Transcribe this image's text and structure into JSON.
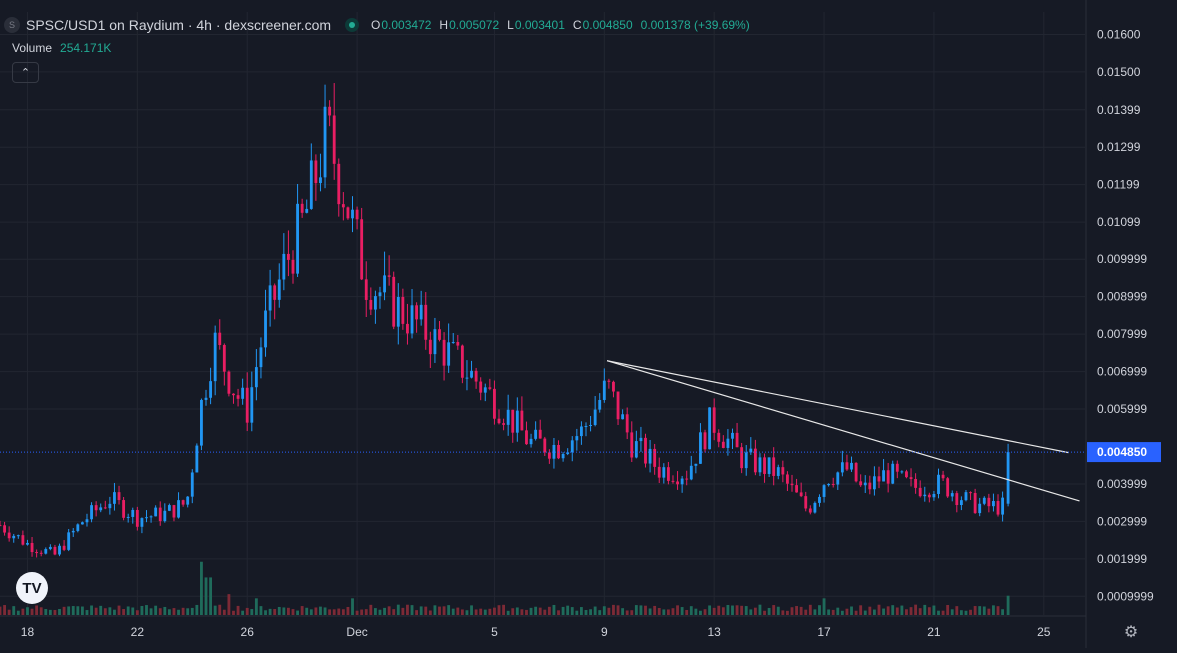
{
  "header": {
    "symbol_badge": "S",
    "title": "SPSC/USD1 on Raydium · 4h · dexscreener.com",
    "ohlc": {
      "o_label": "O",
      "o_value": "0.003472",
      "h_label": "H",
      "h_value": "0.005072",
      "l_label": "L",
      "l_value": "0.003401",
      "c_label": "C",
      "c_value": "0.004850",
      "change": "0.001378 (+39.69%)"
    },
    "volume_label": "Volume",
    "volume_value": "254.171K",
    "collapse_icon": "chevron-up-icon"
  },
  "footer": {
    "logo_text": "TV",
    "settings_icon": "gear-icon"
  },
  "colors": {
    "background": "#161a25",
    "up": "#22ab94",
    "down": "#f23645",
    "up_candle": "#2196f3",
    "down_candle": "#e91e63",
    "vol_up": "#1f6b5b",
    "vol_down": "#7d2a36",
    "grid": "#222631",
    "text": "#d1d4dc",
    "last_price_tag": "#2962ff"
  },
  "chart_data": {
    "type": "candlestick",
    "interval": "4h",
    "y_ticks": [
      "0.01600",
      "0.01500",
      "0.01399",
      "0.01299",
      "0.01199",
      "0.01099",
      "0.009999",
      "0.008999",
      "0.007999",
      "0.006999",
      "0.005999",
      "0.004850",
      "0.003999",
      "0.002999",
      "0.001999",
      "0.0009999"
    ],
    "y_tick_values": [
      0.016,
      0.015,
      0.01399,
      0.01299,
      0.01199,
      0.01099,
      0.009999,
      0.008999,
      0.007999,
      0.006999,
      0.005999,
      0.003999,
      0.002999,
      0.001999,
      0.0009999
    ],
    "ylim": [
      0.0005,
      0.0166
    ],
    "x_ticks": [
      "18",
      "22",
      "26",
      "Dec",
      "5",
      "9",
      "13",
      "17",
      "21",
      "25"
    ],
    "x_tick_days": [
      18,
      22,
      26,
      30,
      35,
      39,
      43,
      47,
      51,
      55
    ],
    "xlim_days": [
      17.0,
      56.5
    ],
    "last_price": 0.00485,
    "last_price_label": "0.004850",
    "keypoints": [
      {
        "d": 17.0,
        "c": 0.0029
      },
      {
        "d": 18.0,
        "c": 0.0024
      },
      {
        "d": 19.0,
        "c": 0.0021
      },
      {
        "d": 20.0,
        "c": 0.003
      },
      {
        "d": 21.0,
        "c": 0.0036
      },
      {
        "d": 22.0,
        "c": 0.0031
      },
      {
        "d": 23.0,
        "c": 0.0032
      },
      {
        "d": 23.8,
        "c": 0.0035
      },
      {
        "d": 24.3,
        "c": 0.006
      },
      {
        "d": 24.8,
        "c": 0.0078
      },
      {
        "d": 25.6,
        "c": 0.0064
      },
      {
        "d": 26.0,
        "c": 0.006
      },
      {
        "d": 26.6,
        "c": 0.0081
      },
      {
        "d": 27.4,
        "c": 0.0099
      },
      {
        "d": 28.1,
        "c": 0.0111
      },
      {
        "d": 28.9,
        "c": 0.0134
      },
      {
        "d": 29.6,
        "c": 0.0116
      },
      {
        "d": 30.3,
        "c": 0.0095
      },
      {
        "d": 31.3,
        "c": 0.0088
      },
      {
        "d": 32.3,
        "c": 0.0082
      },
      {
        "d": 33.3,
        "c": 0.0075
      },
      {
        "d": 34.3,
        "c": 0.0068
      },
      {
        "d": 35.3,
        "c": 0.006
      },
      {
        "d": 36.3,
        "c": 0.0051
      },
      {
        "d": 37.3,
        "c": 0.005
      },
      {
        "d": 38.2,
        "c": 0.0054
      },
      {
        "d": 39.1,
        "c": 0.0066
      },
      {
        "d": 40.0,
        "c": 0.0051
      },
      {
        "d": 41.0,
        "c": 0.0044
      },
      {
        "d": 42.0,
        "c": 0.0043
      },
      {
        "d": 42.9,
        "c": 0.0057
      },
      {
        "d": 44.0,
        "c": 0.0047
      },
      {
        "d": 45.3,
        "c": 0.0043
      },
      {
        "d": 46.4,
        "c": 0.0033
      },
      {
        "d": 47.1,
        "c": 0.0042
      },
      {
        "d": 47.9,
        "c": 0.0044
      },
      {
        "d": 48.4,
        "c": 0.0038
      },
      {
        "d": 49.3,
        "c": 0.0043
      },
      {
        "d": 50.2,
        "c": 0.0039
      },
      {
        "d": 51.3,
        "c": 0.004
      },
      {
        "d": 52.3,
        "c": 0.0035
      },
      {
        "d": 52.8,
        "c": 0.0034
      },
      {
        "d": 53.6,
        "c": 0.0034
      },
      {
        "d": 53.7,
        "c": 0.00485
      }
    ],
    "volume_spikes": [
      {
        "d": 24.3,
        "v": 1.0
      },
      {
        "d": 24.6,
        "v": 0.7
      },
      {
        "d": 25.3,
        "v": 0.38
      },
      {
        "d": 26.4,
        "v": 0.3
      },
      {
        "d": 29.9,
        "v": 0.3
      },
      {
        "d": 47.0,
        "v": 0.3
      },
      {
        "d": 53.7,
        "v": 0.35
      }
    ],
    "trendlines": [
      {
        "from": {
          "d": 39.1,
          "v": 0.00729
        },
        "to": {
          "d": 55.9,
          "v": 0.004835
        }
      },
      {
        "from": {
          "d": 39.1,
          "v": 0.00729
        },
        "to": {
          "d": 56.3,
          "v": 0.003545
        }
      }
    ]
  }
}
